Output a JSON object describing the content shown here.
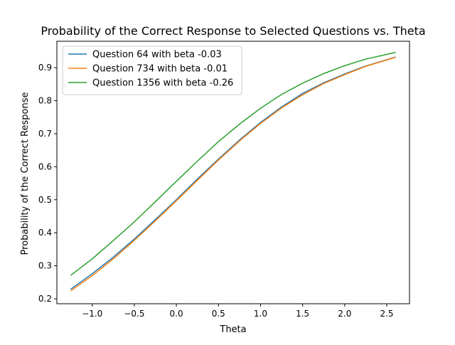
{
  "chart_data": {
    "type": "line",
    "title": "Probability of the Correct Response to Selected Questions vs. Theta",
    "xlabel": "Theta",
    "ylabel": "Probability of the Correct Response",
    "xlim": [
      -1.42,
      2.77
    ],
    "ylim": [
      0.185,
      0.98
    ],
    "xticks": [
      -1.0,
      -0.5,
      0.0,
      0.5,
      1.0,
      1.5,
      2.0,
      2.5
    ],
    "xtick_labels": [
      "−1.0",
      "−0.5",
      "0.0",
      "0.5",
      "1.0",
      "1.5",
      "2.0",
      "2.5"
    ],
    "yticks": [
      0.2,
      0.3,
      0.4,
      0.5,
      0.6,
      0.7,
      0.8,
      0.9
    ],
    "ytick_labels": [
      "0.2",
      "0.3",
      "0.4",
      "0.5",
      "0.6",
      "0.7",
      "0.8",
      "0.9"
    ],
    "grid": false,
    "legend_position": "top-left",
    "x": [
      -1.25,
      -1.0,
      -0.75,
      -0.5,
      -0.25,
      0.0,
      0.25,
      0.5,
      0.75,
      1.0,
      1.25,
      1.5,
      1.75,
      2.0,
      2.25,
      2.6
    ],
    "series": [
      {
        "name": "Question 64 with beta -0.03",
        "color": "#1f77b4",
        "values": [
          0.23,
          0.276,
          0.326,
          0.381,
          0.44,
          0.5,
          0.563,
          0.623,
          0.681,
          0.734,
          0.781,
          0.822,
          0.854,
          0.881,
          0.905,
          0.932
        ]
      },
      {
        "name": "Question 734 with beta -0.01",
        "color": "#ff7f0e",
        "values": [
          0.225,
          0.27,
          0.321,
          0.377,
          0.436,
          0.497,
          0.559,
          0.62,
          0.678,
          0.731,
          0.778,
          0.818,
          0.852,
          0.879,
          0.904,
          0.931
        ]
      },
      {
        "name": "Question 1356 with beta -0.26",
        "color": "#2ca02c",
        "values": [
          0.272,
          0.321,
          0.376,
          0.433,
          0.494,
          0.556,
          0.617,
          0.676,
          0.729,
          0.777,
          0.819,
          0.853,
          0.882,
          0.906,
          0.926,
          0.946
        ]
      }
    ]
  }
}
